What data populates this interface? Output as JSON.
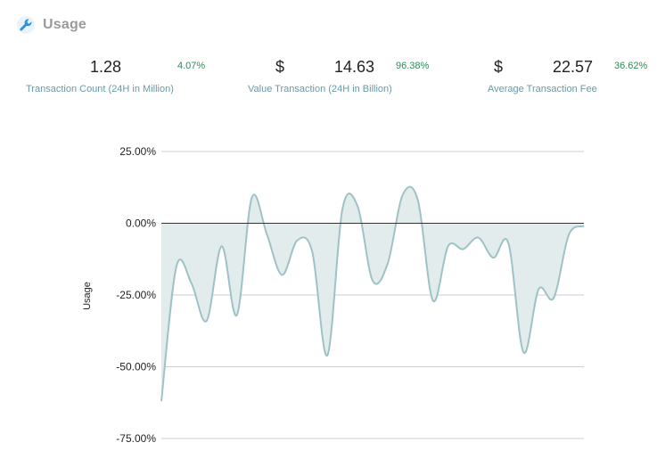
{
  "header": {
    "title": "Usage",
    "icon": "wrench-icon",
    "icon_color": "#2f8fd8"
  },
  "stats": [
    {
      "currency": "",
      "value": "1.28",
      "change": "4.07%",
      "label": "Transaction Count (24H in Million)"
    },
    {
      "currency": "$",
      "value": "14.63",
      "change": "96.38%",
      "label": "Value Transaction (24H in Billion)"
    },
    {
      "currency": "$",
      "value": "22.57",
      "change": "36.62%",
      "label": "Average Transaction Fee"
    }
  ],
  "colors": {
    "positive_change": "#2e8b57",
    "label": "#6a9aa6",
    "line": "#9fc2c6",
    "fill": "#e2eced"
  },
  "chart_data": {
    "type": "area",
    "title": "",
    "xlabel": "",
    "ylabel": "Usage",
    "ylim": [
      -75,
      25
    ],
    "yticks": [
      25,
      0,
      -25,
      -50,
      -75
    ],
    "ytick_labels": [
      "25.00%",
      "0.00%",
      "-25.00%",
      "-50.00%",
      "-75.00%"
    ],
    "grid": true,
    "baseline": 0,
    "x": [
      0,
      1,
      2,
      3,
      4,
      5,
      6,
      7,
      8,
      9,
      10,
      11,
      12,
      13,
      14,
      15,
      16,
      17,
      18,
      19,
      20,
      21,
      22,
      23,
      24,
      25,
      26,
      27,
      28
    ],
    "series": [
      {
        "values": [
          -62,
          -15,
          -21,
          -34,
          -8,
          -32,
          9,
          -4,
          -18,
          -6,
          -10,
          -46,
          5,
          6,
          -20,
          -14,
          10,
          8,
          -27,
          -8,
          -9,
          -5,
          -12,
          -7,
          -45,
          -23,
          -26,
          -4,
          -1
        ]
      }
    ]
  }
}
